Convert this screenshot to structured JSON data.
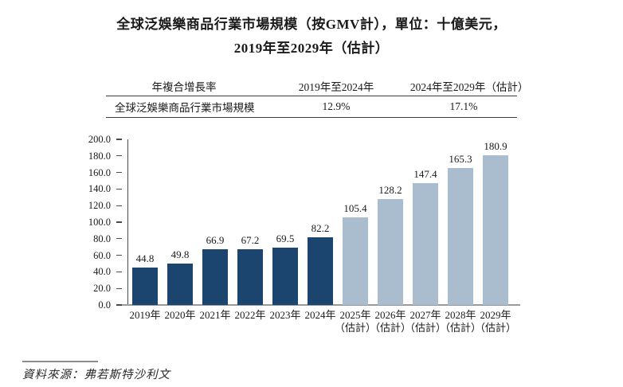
{
  "page": {
    "title_line1": "全球泛娛樂商品行業市場規模（按GMV計），單位：十億美元，",
    "title_line2": "2019年至2029年（估計）",
    "source_note": "資料來源：弗若斯特沙利文"
  },
  "table": {
    "headers": [
      "年複合增長率",
      "2019年至2024年",
      "2024年至2029年（估計）"
    ],
    "rows": [
      {
        "label": "全球泛娛樂商品行業市場規模",
        "cagr_2019_2024": "12.9%",
        "cagr_2024_2029": "17.1%"
      }
    ]
  },
  "chart_data": {
    "type": "bar",
    "title": "全球泛娛樂商品行業市場規模（按GMV計），單位：十億美元，2019年至2029年（估計）",
    "unit": "十億美元",
    "categories": [
      "2019年",
      "2020年",
      "2021年",
      "2022年",
      "2023年",
      "2024年",
      "2025年（估計）",
      "2026年（估計）",
      "2027年（估計）",
      "2028年（估計）",
      "2029年（估計）"
    ],
    "values": [
      44.8,
      49.8,
      66.9,
      67.2,
      69.5,
      82.2,
      105.4,
      128.2,
      147.4,
      165.3,
      180.9
    ],
    "estimate_start_index": 6,
    "ylim": [
      0,
      200
    ],
    "ytick_step": 20,
    "grid": false,
    "legend_position": "none",
    "colors": {
      "actual_bar": "#1B456E",
      "estimate_bar": "#AABDCE",
      "x_axis_line": "#9A9A9A",
      "y_axis_line": "#4A4A4A",
      "text": "#1A1A1A"
    }
  }
}
